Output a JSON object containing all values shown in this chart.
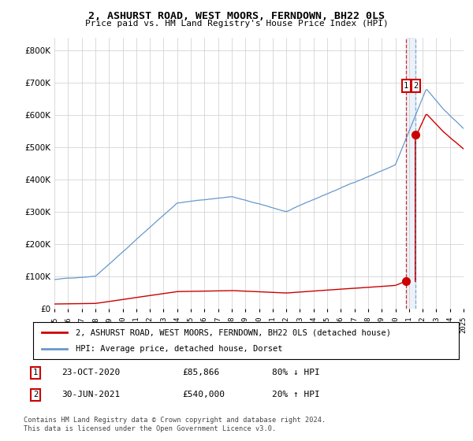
{
  "title": "2, ASHURST ROAD, WEST MOORS, FERNDOWN, BH22 0LS",
  "subtitle": "Price paid vs. HM Land Registry's House Price Index (HPI)",
  "legend_label_red": "2, ASHURST ROAD, WEST MOORS, FERNDOWN, BH22 0LS (detached house)",
  "legend_label_blue": "HPI: Average price, detached house, Dorset",
  "transaction1_date": "23-OCT-2020",
  "transaction1_price": "£85,866",
  "transaction1_hpi": "80% ↓ HPI",
  "transaction2_date": "30-JUN-2021",
  "transaction2_price": "£540,000",
  "transaction2_hpi": "20% ↑ HPI",
  "footer": "Contains HM Land Registry data © Crown copyright and database right 2024.\nThis data is licensed under the Open Government Licence v3.0.",
  "ylim": [
    0,
    840000
  ],
  "hpi_color": "#6699cc",
  "price_color": "#cc0000",
  "transaction1_x": 2020.8,
  "transaction2_x": 2021.5,
  "transaction1_price_val": 85866,
  "transaction2_price_val": 540000
}
